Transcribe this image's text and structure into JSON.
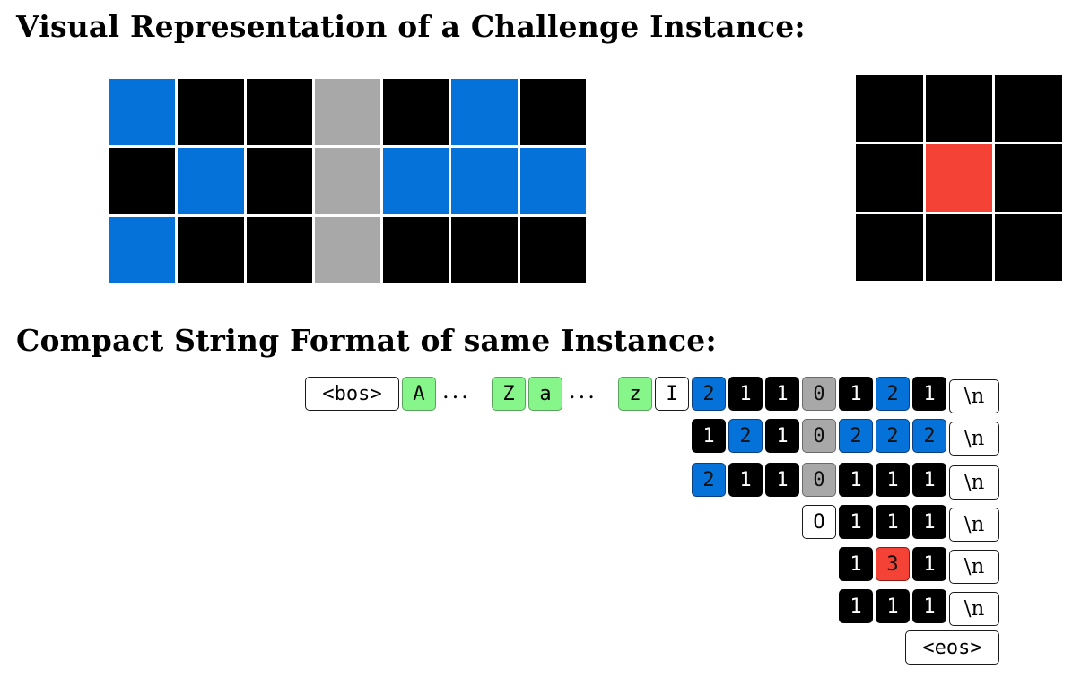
{
  "headings": {
    "visual": "Visual Representation of a Challenge Instance:",
    "compact": "Compact String Format of same Instance:"
  },
  "colors": {
    "0": "#a8a8a8",
    "1": "#000000",
    "2": "#0472d8",
    "3": "#f44336",
    "letter_token": "#86f58a"
  },
  "input_grid": [
    [
      2,
      1,
      1,
      0,
      1,
      2,
      1
    ],
    [
      1,
      2,
      1,
      0,
      2,
      2,
      2
    ],
    [
      2,
      1,
      1,
      0,
      1,
      1,
      1
    ]
  ],
  "output_grid": [
    [
      1,
      1,
      1
    ],
    [
      1,
      3,
      1
    ],
    [
      1,
      1,
      1
    ]
  ],
  "token_rows": [
    [
      {
        "text": "<bos>",
        "kind": "special"
      },
      {
        "text": "A",
        "kind": "green"
      },
      {
        "text": "...",
        "kind": "ellipsis"
      },
      {
        "text": "Z",
        "kind": "green"
      },
      {
        "text": "a",
        "kind": "green"
      },
      {
        "text": "...",
        "kind": "ellipsis"
      },
      {
        "text": "z",
        "kind": "green"
      },
      {
        "text": "I",
        "kind": "white"
      },
      {
        "text": "2",
        "kind": "blue"
      },
      {
        "text": "1",
        "kind": "black"
      },
      {
        "text": "1",
        "kind": "black"
      },
      {
        "text": "0",
        "kind": "gray"
      },
      {
        "text": "1",
        "kind": "black"
      },
      {
        "text": "2",
        "kind": "blue"
      },
      {
        "text": "1",
        "kind": "black"
      },
      {
        "text": "\\n",
        "kind": "newline"
      }
    ],
    [
      {
        "text": "1",
        "kind": "black"
      },
      {
        "text": "2",
        "kind": "blue"
      },
      {
        "text": "1",
        "kind": "black"
      },
      {
        "text": "0",
        "kind": "gray"
      },
      {
        "text": "2",
        "kind": "blue"
      },
      {
        "text": "2",
        "kind": "blue"
      },
      {
        "text": "2",
        "kind": "blue"
      },
      {
        "text": "\\n",
        "kind": "newline"
      }
    ],
    [
      {
        "text": "2",
        "kind": "blue"
      },
      {
        "text": "1",
        "kind": "black"
      },
      {
        "text": "1",
        "kind": "black"
      },
      {
        "text": "0",
        "kind": "gray"
      },
      {
        "text": "1",
        "kind": "black"
      },
      {
        "text": "1",
        "kind": "black"
      },
      {
        "text": "1",
        "kind": "black"
      },
      {
        "text": "\\n",
        "kind": "newline"
      }
    ],
    [
      {
        "text": "O",
        "kind": "white"
      },
      {
        "text": "1",
        "kind": "black"
      },
      {
        "text": "1",
        "kind": "black"
      },
      {
        "text": "1",
        "kind": "black"
      },
      {
        "text": "\\n",
        "kind": "newline"
      }
    ],
    [
      {
        "text": "1",
        "kind": "black"
      },
      {
        "text": "3",
        "kind": "red"
      },
      {
        "text": "1",
        "kind": "black"
      },
      {
        "text": "\\n",
        "kind": "newline"
      }
    ],
    [
      {
        "text": "1",
        "kind": "black"
      },
      {
        "text": "1",
        "kind": "black"
      },
      {
        "text": "1",
        "kind": "black"
      },
      {
        "text": "\\n",
        "kind": "newline"
      }
    ],
    [
      {
        "text": "<eos>",
        "kind": "special"
      }
    ]
  ]
}
